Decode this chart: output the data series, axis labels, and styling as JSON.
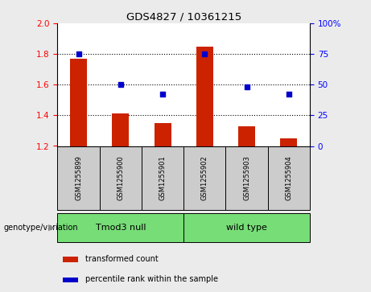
{
  "title": "GDS4827 / 10361215",
  "samples": [
    "GSM1255899",
    "GSM1255900",
    "GSM1255901",
    "GSM1255902",
    "GSM1255903",
    "GSM1255904"
  ],
  "bar_values": [
    1.77,
    1.41,
    1.35,
    1.85,
    1.33,
    1.25
  ],
  "bar_baseline": 1.2,
  "percentile_values": [
    75,
    50,
    42,
    75,
    48,
    42
  ],
  "bar_color": "#cc2200",
  "dot_color": "#0000cc",
  "ylim_left": [
    1.2,
    2.0
  ],
  "ylim_right": [
    0,
    100
  ],
  "yticks_left": [
    1.2,
    1.4,
    1.6,
    1.8,
    2.0
  ],
  "yticks_right": [
    0,
    25,
    50,
    75,
    100
  ],
  "ytick_labels_right": [
    "0",
    "25",
    "50",
    "75",
    "100%"
  ],
  "hlines": [
    1.4,
    1.6,
    1.8
  ],
  "groups": [
    {
      "label": "Tmod3 null",
      "color": "#77dd77"
    },
    {
      "label": "wild type",
      "color": "#77dd77"
    }
  ],
  "group_label": "genotype/variation",
  "legend_bar_label": "transformed count",
  "legend_dot_label": "percentile rank within the sample",
  "bar_width": 0.4,
  "bg_color": "#ebebeb",
  "plot_bg_color": "#ffffff",
  "sample_box_color": "#cccccc"
}
